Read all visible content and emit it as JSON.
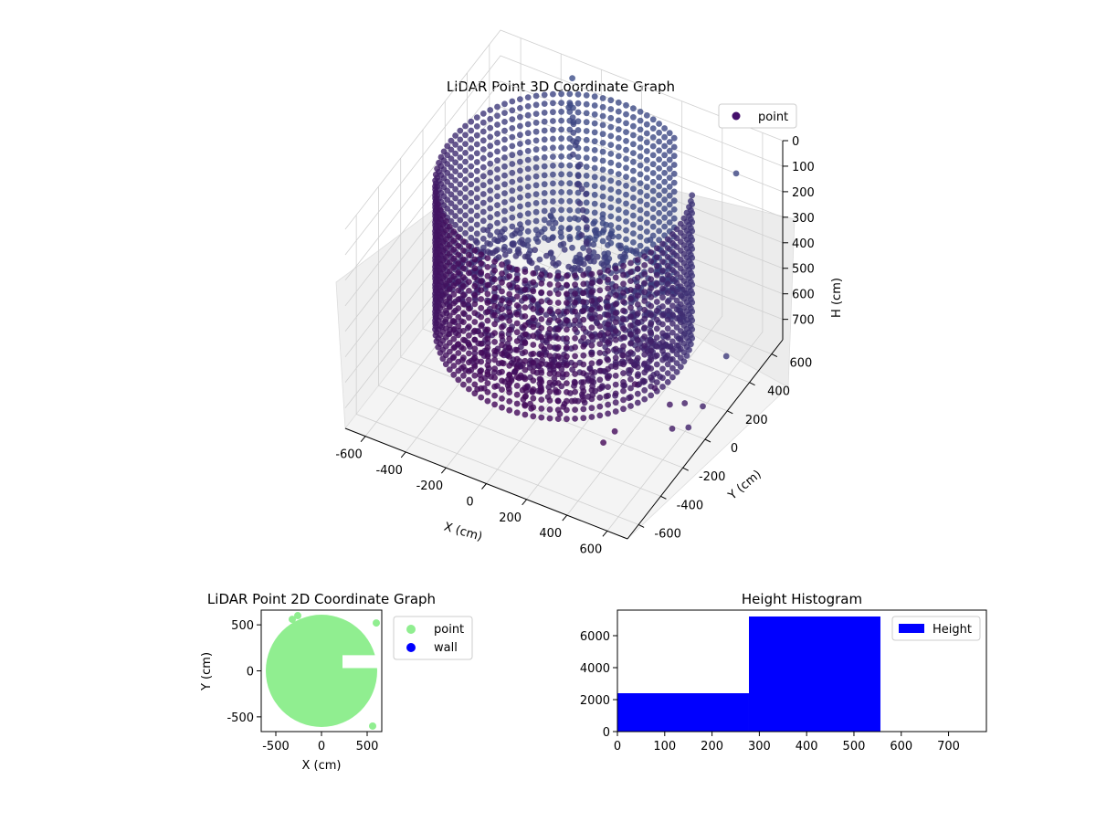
{
  "chart_data": [
    {
      "type": "scatter",
      "projection": "3d",
      "title": "LiDAR Point 3D Coordinate Graph",
      "xlabel": "X (cm)",
      "ylabel": "Y (cm)",
      "zlabel": "H (cm)",
      "xlim": [
        -700,
        700
      ],
      "ylim": [
        -700,
        700
      ],
      "zlim": [
        0,
        780
      ],
      "zinverted": true,
      "xticks": [
        -600,
        -400,
        -200,
        0,
        200,
        400,
        600
      ],
      "yticks": [
        -600,
        -400,
        -200,
        0,
        200,
        400,
        600
      ],
      "zticks": [
        0,
        100,
        200,
        300,
        400,
        500,
        600,
        700
      ],
      "grid": true,
      "legend": {
        "position": "top-right",
        "entries": [
          {
            "label": "point",
            "color": "#440f6b"
          }
        ]
      },
      "colormap": "viridis",
      "series": [
        {
          "name": "point",
          "shape": "cylindrical wall scan",
          "wall_radius": 560,
          "h_top": 0,
          "h_bottom": 560,
          "wall_columns": 96,
          "wall_gap_angle_range_deg": [
            25,
            60
          ],
          "floor_spread_h": 120,
          "diagonal_beam": {
            "from": [
              -280,
              560,
              60
            ],
            "to": [
              250,
              -150,
              420
            ]
          },
          "outliers": [
            [
              690,
              -300,
              480
            ],
            [
              720,
              -220,
              510
            ],
            [
              760,
              -130,
              560
            ],
            [
              660,
              -380,
              380
            ],
            [
              610,
              -470,
              330
            ],
            [
              590,
              480,
              40
            ],
            [
              -300,
              620,
              20
            ],
            [
              680,
              -260,
              600
            ],
            [
              640,
              300,
              640
            ],
            [
              700,
              -150,
              650
            ],
            [
              560,
              -560,
              480
            ],
            [
              520,
              -590,
              520
            ]
          ]
        }
      ]
    },
    {
      "type": "scatter",
      "title": "LiDAR Point 2D Coordinate Graph",
      "xlabel": "X (cm)",
      "ylabel": "Y (cm)",
      "xlim": [
        -660,
        660
      ],
      "ylim": [
        -660,
        660
      ],
      "xticks": [
        -500,
        0,
        500
      ],
      "yticks": [
        -500,
        0,
        500
      ],
      "legend": {
        "position": "outside right",
        "entries": [
          {
            "label": "point",
            "color": "#90ee90"
          },
          {
            "label": "wall",
            "color": "#0000ff"
          }
        ]
      },
      "series": [
        {
          "name": "point",
          "color": "#90ee90",
          "shape": "filled disk",
          "center": [
            0,
            0
          ],
          "radius": 610,
          "notch": {
            "x_from": 230,
            "x_to": 660,
            "y_from": 30,
            "y_to": 170
          },
          "spikes": [
            [
              -320,
              560
            ],
            [
              -260,
              600
            ],
            [
              600,
              520
            ],
            [
              560,
              -600
            ]
          ]
        },
        {
          "name": "wall",
          "color": "#0000ff",
          "points": []
        }
      ]
    },
    {
      "type": "bar",
      "title": "Height Histogram",
      "xlim": [
        0,
        780
      ],
      "ylim": [
        0,
        7600
      ],
      "xticks": [
        0,
        100,
        200,
        300,
        400,
        500,
        600,
        700
      ],
      "yticks": [
        0,
        2000,
        4000,
        6000
      ],
      "legend": {
        "position": "top-right",
        "entries": [
          {
            "label": "Height",
            "color": "#0000ff"
          }
        ]
      },
      "series": [
        {
          "name": "Height",
          "color": "#0000ff",
          "bins": [
            {
              "from": 0,
              "to": 278,
              "count": 2400
            },
            {
              "from": 278,
              "to": 556,
              "count": 7200
            },
            {
              "from": 556,
              "to": 834,
              "count": 0
            }
          ]
        }
      ]
    }
  ]
}
